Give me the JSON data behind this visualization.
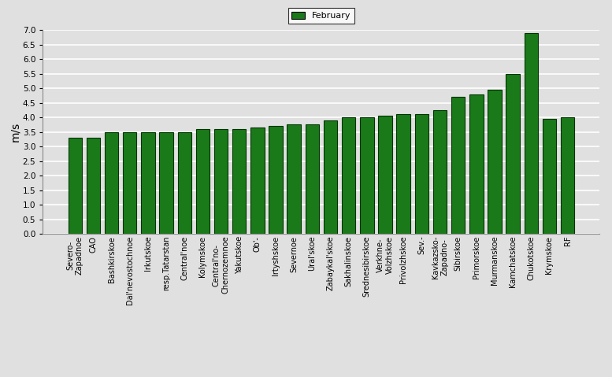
{
  "categories": [
    "Severo-\nZapadnoe",
    "CAO",
    "Bashkirskoe",
    "Dal'nevostochnoe",
    "Irkutskoe",
    "resp.Tatarstan",
    "Central'noe",
    "Kolymskoe",
    "Central'no-\nChernozemnoe",
    "Yakutskoe",
    "Ob'-",
    "Irtyshskoe",
    "Severnoe",
    "Ural'skoe",
    "Zabaykal'skoe",
    "Sakhalinskoe",
    "Srednesibirskoe",
    "Verkhnе-\nVolzhskoe",
    "Privolzhskoe",
    "Sev.-",
    "Kavkazsko-\nZapadno-",
    "Sibirskoe",
    "Primorskoe",
    "Murmanskoe",
    "Kamchatskoe",
    "Chukotskoe",
    "Krymskoe",
    "RF"
  ],
  "values": [
    3.3,
    3.3,
    3.5,
    3.5,
    3.5,
    3.5,
    3.5,
    3.6,
    3.6,
    3.6,
    3.65,
    3.7,
    3.75,
    3.75,
    3.9,
    4.0,
    4.0,
    4.05,
    4.1,
    4.1,
    4.25,
    4.7,
    4.8,
    4.95,
    5.5,
    6.9,
    3.95,
    4.0
  ],
  "bar_color": "#1a7a1a",
  "bar_edge_color": "#003300",
  "ylabel": "m/s",
  "ylim": [
    0,
    7
  ],
  "yticks": [
    0,
    0.5,
    1.0,
    1.5,
    2.0,
    2.5,
    3.0,
    3.5,
    4.0,
    4.5,
    5.0,
    5.5,
    6.0,
    6.5,
    7.0
  ],
  "legend_label": "February",
  "legend_color": "#1a7a1a",
  "background_color": "#e0e0e0",
  "plot_bg_color": "#e0e0e0",
  "grid_color": "#ffffff",
  "tick_fontsize": 7.5,
  "label_fontsize": 7
}
